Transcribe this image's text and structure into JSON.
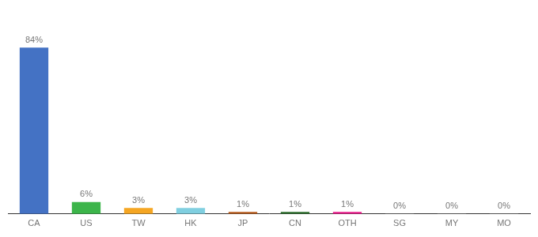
{
  "chart_data": {
    "type": "bar",
    "categories": [
      "CA",
      "US",
      "TW",
      "HK",
      "JP",
      "CN",
      "OTH",
      "SG",
      "MY",
      "MO"
    ],
    "values": [
      84,
      6,
      3,
      3,
      1,
      1,
      1,
      0.1,
      0.1,
      0.1
    ],
    "value_labels": [
      "84%",
      "6%",
      "3%",
      "3%",
      "1%",
      "1%",
      "1%",
      "0%",
      "0%",
      "0%"
    ],
    "data_labels": true,
    "colors": [
      "#4472c4",
      "#3cb54a",
      "#f5a623",
      "#80cfe0",
      "#b85c1e",
      "#2d6e2d",
      "#e91e8c",
      "#cccccc",
      "#cccccc",
      "#cccccc"
    ],
    "ylim": [
      0,
      100
    ],
    "grid": false,
    "tick_labels": "x"
  }
}
